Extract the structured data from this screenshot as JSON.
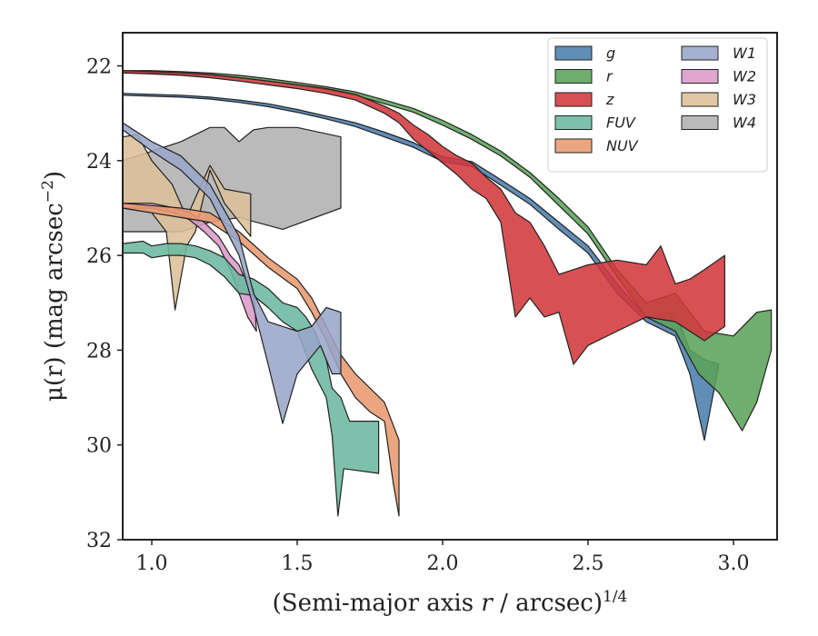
{
  "chart_data": {
    "type": "area",
    "xlabel": "(Semi-major axis r / arcsec)",
    "xlabel_italic_var": "r",
    "xlabel_exponent": "1/4",
    "ylabel": "μ(r) (mag arcsec",
    "ylabel_exponent": "−2",
    "ylabel_suffix": ")",
    "xlim": [
      0.9,
      3.15
    ],
    "ylim": [
      32,
      21.3
    ],
    "y_inverted": true,
    "xticks": [
      1.0,
      1.5,
      2.0,
      2.5,
      3.0
    ],
    "xtick_labels": [
      "1.0",
      "1.5",
      "2.0",
      "2.5",
      "3.0"
    ],
    "yticks": [
      22,
      24,
      26,
      28,
      30,
      32
    ],
    "ytick_labels": [
      "22",
      "24",
      "26",
      "28",
      "30",
      "32"
    ],
    "grid": false,
    "legend": {
      "placement": "top-right",
      "columns": 2
    },
    "series": [
      {
        "name": "W4",
        "color": "#b0b0b0",
        "upper": [
          [
            0.9,
            24.0
          ],
          [
            1.0,
            23.8
          ],
          [
            1.1,
            23.6
          ],
          [
            1.2,
            23.3
          ],
          [
            1.25,
            23.3
          ],
          [
            1.3,
            23.6
          ],
          [
            1.35,
            23.35
          ],
          [
            1.4,
            23.3
          ],
          [
            1.5,
            23.3
          ],
          [
            1.65,
            23.5
          ]
        ],
        "lower": [
          [
            0.9,
            25.5
          ],
          [
            1.0,
            25.5
          ],
          [
            1.1,
            25.5
          ],
          [
            1.2,
            25.3
          ],
          [
            1.3,
            25.2
          ],
          [
            1.45,
            25.45
          ],
          [
            1.65,
            25.0
          ]
        ]
      },
      {
        "name": "W3",
        "color": "#dcc09a",
        "upper": [
          [
            0.9,
            23.5
          ],
          [
            0.95,
            23.45
          ],
          [
            1.0,
            24.0
          ],
          [
            1.07,
            24.5
          ],
          [
            1.12,
            25.2
          ],
          [
            1.2,
            24.1
          ],
          [
            1.25,
            24.6
          ],
          [
            1.34,
            24.7
          ]
        ],
        "lower": [
          [
            0.9,
            25.0
          ],
          [
            0.95,
            25.05
          ],
          [
            1.0,
            25.1
          ],
          [
            1.05,
            25.5
          ],
          [
            1.08,
            27.15
          ],
          [
            1.12,
            25.8
          ],
          [
            1.15,
            25.5
          ],
          [
            1.2,
            24.2
          ],
          [
            1.25,
            24.9
          ],
          [
            1.34,
            25.6
          ]
        ]
      },
      {
        "name": "W2",
        "color": "#dc9ac8",
        "upper": [
          [
            0.9,
            24.9
          ],
          [
            1.0,
            24.9
          ],
          [
            1.08,
            25.0
          ],
          [
            1.13,
            25.1
          ],
          [
            1.18,
            25.3
          ],
          [
            1.23,
            25.6
          ],
          [
            1.27,
            26.0
          ],
          [
            1.3,
            26.2
          ],
          [
            1.32,
            26.5
          ],
          [
            1.35,
            26.7
          ]
        ],
        "lower": [
          [
            0.9,
            25.0
          ],
          [
            1.0,
            25.0
          ],
          [
            1.08,
            25.1
          ],
          [
            1.13,
            25.25
          ],
          [
            1.18,
            25.5
          ],
          [
            1.23,
            25.8
          ],
          [
            1.27,
            26.3
          ],
          [
            1.3,
            26.8
          ],
          [
            1.33,
            27.3
          ],
          [
            1.36,
            27.6
          ]
        ]
      },
      {
        "name": "FUV",
        "color": "#6bb8a0",
        "upper": [
          [
            0.9,
            25.75
          ],
          [
            0.97,
            25.7
          ],
          [
            1.0,
            25.8
          ],
          [
            1.05,
            25.75
          ],
          [
            1.1,
            25.75
          ],
          [
            1.15,
            25.8
          ],
          [
            1.2,
            25.9
          ],
          [
            1.25,
            26.05
          ],
          [
            1.3,
            26.4
          ],
          [
            1.35,
            26.5
          ],
          [
            1.4,
            26.7
          ],
          [
            1.45,
            27.0
          ],
          [
            1.5,
            27.1
          ],
          [
            1.53,
            27.3
          ],
          [
            1.56,
            27.6
          ],
          [
            1.6,
            28.2
          ],
          [
            1.62,
            28.8
          ],
          [
            1.65,
            29.0
          ],
          [
            1.68,
            29.5
          ],
          [
            1.78,
            29.5
          ]
        ],
        "lower": [
          [
            0.9,
            25.95
          ],
          [
            0.97,
            25.95
          ],
          [
            1.0,
            26.05
          ],
          [
            1.05,
            26.0
          ],
          [
            1.1,
            26.0
          ],
          [
            1.15,
            26.05
          ],
          [
            1.2,
            26.2
          ],
          [
            1.25,
            26.45
          ],
          [
            1.3,
            26.8
          ],
          [
            1.35,
            26.85
          ],
          [
            1.4,
            27.1
          ],
          [
            1.45,
            27.4
          ],
          [
            1.5,
            27.6
          ],
          [
            1.55,
            28.4
          ],
          [
            1.6,
            29.0
          ],
          [
            1.62,
            29.8
          ],
          [
            1.64,
            31.5
          ],
          [
            1.66,
            30.5
          ],
          [
            1.78,
            30.6
          ]
        ]
      },
      {
        "name": "NUV",
        "color": "#e89a70",
        "upper": [
          [
            0.9,
            24.9
          ],
          [
            1.0,
            24.95
          ],
          [
            1.1,
            25.0
          ],
          [
            1.2,
            25.1
          ],
          [
            1.3,
            25.5
          ],
          [
            1.4,
            26.05
          ],
          [
            1.5,
            26.5
          ],
          [
            1.55,
            26.9
          ],
          [
            1.6,
            27.5
          ],
          [
            1.65,
            28.1
          ],
          [
            1.7,
            28.5
          ],
          [
            1.75,
            28.8
          ],
          [
            1.8,
            29.1
          ],
          [
            1.85,
            29.9
          ]
        ],
        "lower": [
          [
            0.9,
            25.0
          ],
          [
            1.0,
            25.1
          ],
          [
            1.1,
            25.2
          ],
          [
            1.2,
            25.3
          ],
          [
            1.3,
            25.7
          ],
          [
            1.4,
            26.25
          ],
          [
            1.5,
            26.7
          ],
          [
            1.55,
            27.2
          ],
          [
            1.6,
            27.8
          ],
          [
            1.65,
            28.5
          ],
          [
            1.7,
            29.0
          ],
          [
            1.75,
            29.3
          ],
          [
            1.8,
            29.5
          ],
          [
            1.83,
            30.8
          ],
          [
            1.85,
            31.5
          ]
        ]
      },
      {
        "name": "W1",
        "color": "#98a6c8",
        "upper": [
          [
            0.9,
            23.2
          ],
          [
            1.0,
            23.6
          ],
          [
            1.1,
            23.9
          ],
          [
            1.2,
            24.5
          ],
          [
            1.3,
            25.6
          ],
          [
            1.35,
            26.8
          ],
          [
            1.4,
            27.4
          ],
          [
            1.45,
            27.5
          ],
          [
            1.5,
            27.6
          ],
          [
            1.55,
            27.5
          ],
          [
            1.6,
            27.1
          ],
          [
            1.65,
            27.2
          ]
        ],
        "lower": [
          [
            0.9,
            23.35
          ],
          [
            1.0,
            23.8
          ],
          [
            1.1,
            24.2
          ],
          [
            1.2,
            24.8
          ],
          [
            1.3,
            26.0
          ],
          [
            1.35,
            27.1
          ],
          [
            1.4,
            28.3
          ],
          [
            1.45,
            29.55
          ],
          [
            1.5,
            28.5
          ],
          [
            1.58,
            27.9
          ],
          [
            1.62,
            28.5
          ],
          [
            1.65,
            28.5
          ]
        ]
      },
      {
        "name": "g",
        "color": "#4a7ead",
        "upper": [
          [
            0.9,
            22.58
          ],
          [
            1.0,
            22.6
          ],
          [
            1.1,
            22.62
          ],
          [
            1.2,
            22.66
          ],
          [
            1.3,
            22.72
          ],
          [
            1.4,
            22.8
          ],
          [
            1.5,
            22.92
          ],
          [
            1.6,
            23.06
          ],
          [
            1.7,
            23.2
          ],
          [
            1.8,
            23.4
          ],
          [
            1.9,
            23.62
          ],
          [
            2.0,
            23.92
          ],
          [
            2.1,
            24.02
          ],
          [
            2.2,
            24.4
          ],
          [
            2.3,
            24.8
          ],
          [
            2.4,
            25.3
          ],
          [
            2.5,
            25.8
          ],
          [
            2.6,
            26.6
          ],
          [
            2.7,
            27.3
          ],
          [
            2.8,
            27.2
          ],
          [
            2.85,
            28.0
          ],
          [
            2.9,
            28.2
          ],
          [
            2.95,
            28.3
          ]
        ],
        "lower": [
          [
            0.9,
            22.62
          ],
          [
            1.0,
            22.64
          ],
          [
            1.1,
            22.66
          ],
          [
            1.2,
            22.7
          ],
          [
            1.3,
            22.77
          ],
          [
            1.4,
            22.86
          ],
          [
            1.5,
            22.98
          ],
          [
            1.6,
            23.12
          ],
          [
            1.7,
            23.28
          ],
          [
            1.8,
            23.5
          ],
          [
            1.9,
            23.72
          ],
          [
            2.0,
            24.02
          ],
          [
            2.1,
            24.12
          ],
          [
            2.2,
            24.52
          ],
          [
            2.3,
            24.92
          ],
          [
            2.4,
            25.45
          ],
          [
            2.5,
            25.95
          ],
          [
            2.6,
            26.8
          ],
          [
            2.7,
            27.4
          ],
          [
            2.8,
            27.7
          ],
          [
            2.85,
            28.5
          ],
          [
            2.9,
            29.9
          ],
          [
            2.95,
            28.3
          ]
        ]
      },
      {
        "name": "r",
        "color": "#5ba35a",
        "upper": [
          [
            0.9,
            22.1
          ],
          [
            1.0,
            22.1
          ],
          [
            1.1,
            22.12
          ],
          [
            1.2,
            22.15
          ],
          [
            1.3,
            22.2
          ],
          [
            1.4,
            22.27
          ],
          [
            1.5,
            22.35
          ],
          [
            1.6,
            22.44
          ],
          [
            1.7,
            22.55
          ],
          [
            1.8,
            22.72
          ],
          [
            1.9,
            22.9
          ],
          [
            2.0,
            23.15
          ],
          [
            2.1,
            23.45
          ],
          [
            2.2,
            23.8
          ],
          [
            2.3,
            24.25
          ],
          [
            2.4,
            24.8
          ],
          [
            2.5,
            25.4
          ],
          [
            2.6,
            26.3
          ],
          [
            2.7,
            27.0
          ],
          [
            2.8,
            26.8
          ],
          [
            2.9,
            27.6
          ],
          [
            3.0,
            27.7
          ],
          [
            3.08,
            27.2
          ],
          [
            3.13,
            27.15
          ]
        ],
        "lower": [
          [
            0.9,
            22.15
          ],
          [
            1.0,
            22.15
          ],
          [
            1.1,
            22.17
          ],
          [
            1.2,
            22.2
          ],
          [
            1.3,
            22.25
          ],
          [
            1.4,
            22.32
          ],
          [
            1.5,
            22.4
          ],
          [
            1.6,
            22.5
          ],
          [
            1.7,
            22.62
          ],
          [
            1.8,
            22.8
          ],
          [
            1.9,
            22.98
          ],
          [
            2.0,
            23.25
          ],
          [
            2.1,
            23.55
          ],
          [
            2.2,
            23.9
          ],
          [
            2.3,
            24.35
          ],
          [
            2.4,
            24.95
          ],
          [
            2.5,
            25.55
          ],
          [
            2.6,
            26.45
          ],
          [
            2.7,
            27.3
          ],
          [
            2.8,
            27.6
          ],
          [
            2.88,
            28.5
          ],
          [
            2.95,
            28.9
          ],
          [
            3.03,
            29.7
          ],
          [
            3.08,
            29.1
          ],
          [
            3.13,
            28.0
          ]
        ]
      },
      {
        "name": "z",
        "color": "#d2383c",
        "upper": [
          [
            0.9,
            22.1
          ],
          [
            1.0,
            22.12
          ],
          [
            1.1,
            22.14
          ],
          [
            1.2,
            22.18
          ],
          [
            1.3,
            22.25
          ],
          [
            1.4,
            22.32
          ],
          [
            1.5,
            22.4
          ],
          [
            1.6,
            22.48
          ],
          [
            1.7,
            22.6
          ],
          [
            1.8,
            22.85
          ],
          [
            1.85,
            23.0
          ],
          [
            1.9,
            23.25
          ],
          [
            1.95,
            23.45
          ],
          [
            2.0,
            23.7
          ],
          [
            2.05,
            23.9
          ],
          [
            2.1,
            24.05
          ],
          [
            2.15,
            24.35
          ],
          [
            2.2,
            24.6
          ],
          [
            2.25,
            25.1
          ],
          [
            2.3,
            25.3
          ],
          [
            2.35,
            25.8
          ],
          [
            2.4,
            26.4
          ],
          [
            2.45,
            26.3
          ],
          [
            2.5,
            26.2
          ],
          [
            2.6,
            26.1
          ],
          [
            2.7,
            26.2
          ],
          [
            2.75,
            25.8
          ],
          [
            2.8,
            26.6
          ],
          [
            2.85,
            26.5
          ],
          [
            2.9,
            26.3
          ],
          [
            2.97,
            26.0
          ]
        ],
        "lower": [
          [
            0.9,
            22.15
          ],
          [
            1.0,
            22.17
          ],
          [
            1.1,
            22.2
          ],
          [
            1.2,
            22.25
          ],
          [
            1.3,
            22.32
          ],
          [
            1.4,
            22.4
          ],
          [
            1.5,
            22.48
          ],
          [
            1.6,
            22.58
          ],
          [
            1.7,
            22.72
          ],
          [
            1.8,
            23.0
          ],
          [
            1.85,
            23.2
          ],
          [
            1.9,
            23.55
          ],
          [
            1.95,
            23.8
          ],
          [
            2.0,
            24.05
          ],
          [
            2.05,
            24.3
          ],
          [
            2.1,
            24.6
          ],
          [
            2.15,
            24.8
          ],
          [
            2.2,
            25.3
          ],
          [
            2.25,
            27.3
          ],
          [
            2.3,
            26.9
          ],
          [
            2.35,
            27.3
          ],
          [
            2.4,
            27.2
          ],
          [
            2.45,
            28.3
          ],
          [
            2.5,
            27.9
          ],
          [
            2.6,
            27.6
          ],
          [
            2.7,
            27.3
          ],
          [
            2.8,
            27.4
          ],
          [
            2.85,
            27.6
          ],
          [
            2.9,
            27.8
          ],
          [
            2.97,
            27.5
          ]
        ]
      }
    ]
  }
}
